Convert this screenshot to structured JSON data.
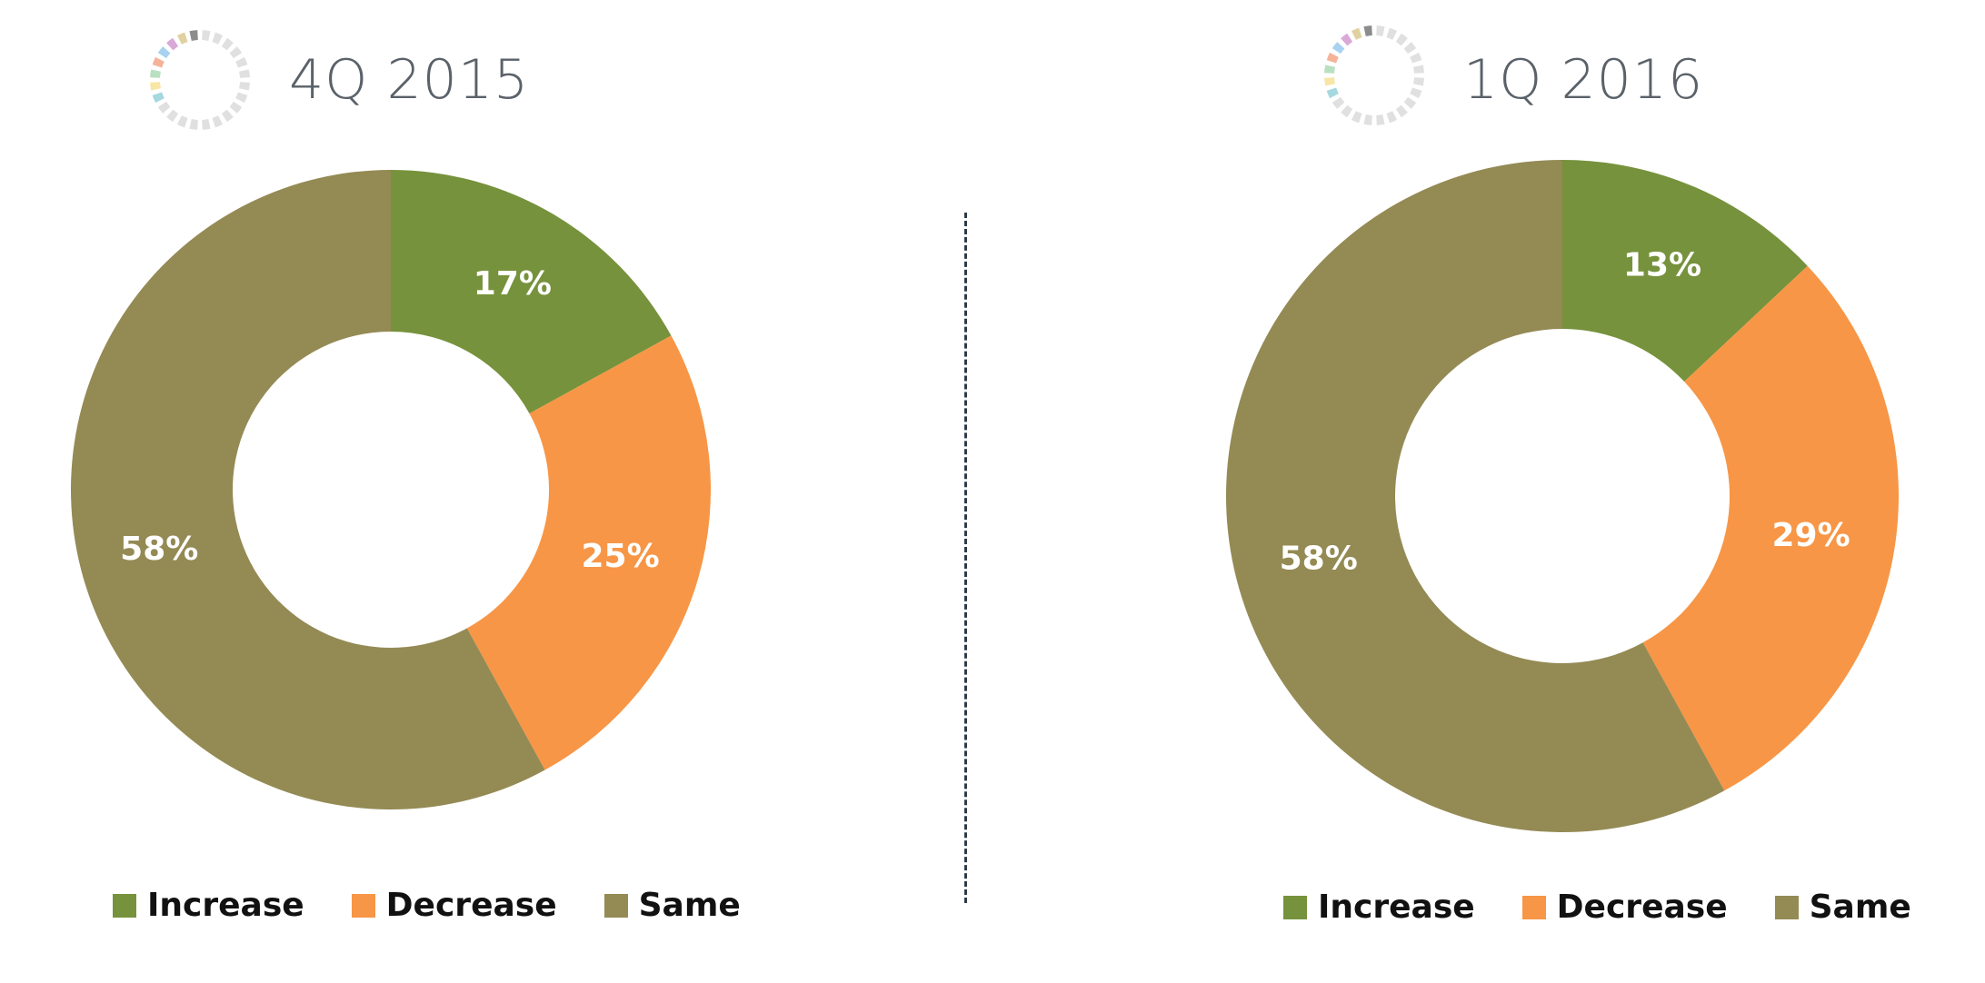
{
  "colors": {
    "increase": "#76923c",
    "decrease": "#f79646",
    "same": "#948a54",
    "title_text": "#5a6169",
    "divider": "#2f3b46"
  },
  "title_icon": "segmented-ring-icon",
  "chart_data": [
    {
      "type": "pie",
      "title": "4Q 2015",
      "donut": true,
      "categories": [
        "Increase",
        "Decrease",
        "Same"
      ],
      "values": [
        17,
        25,
        58
      ],
      "labels": [
        "17%",
        "25%",
        "58%"
      ],
      "legend": "bottom"
    },
    {
      "type": "pie",
      "title": "1Q 2016",
      "donut": true,
      "categories": [
        "Increase",
        "Decrease",
        "Same"
      ],
      "values": [
        13,
        29,
        58
      ],
      "labels": [
        "13%",
        "29%",
        "58%"
      ],
      "legend": "bottom"
    }
  ]
}
